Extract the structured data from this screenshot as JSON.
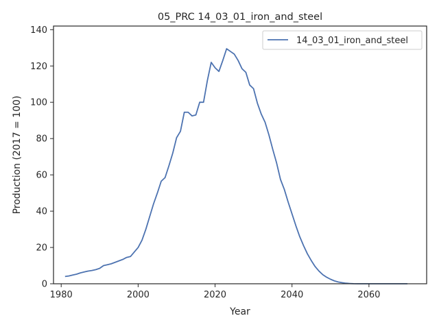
{
  "chart_data": {
    "type": "line",
    "title": "05_PRC 14_03_01_iron_and_steel",
    "xlabel": "Year",
    "ylabel": "Production (2017 = 100)",
    "xlim": [
      1978,
      2075
    ],
    "ylim": [
      0,
      142
    ],
    "xticks": [
      1980,
      2000,
      2020,
      2040,
      2060
    ],
    "yticks": [
      0,
      20,
      40,
      60,
      80,
      100,
      120,
      140
    ],
    "grid": false,
    "legend_position": "top-right",
    "colors": {
      "series": "#4c72b0",
      "axes": "#262626"
    },
    "series": [
      {
        "name": "14_03_01_iron_and_steel",
        "x": [
          1981,
          1982,
          1983,
          1984,
          1985,
          1986,
          1987,
          1988,
          1989,
          1990,
          1991,
          1992,
          1993,
          1994,
          1995,
          1996,
          1997,
          1998,
          1999,
          2000,
          2001,
          2002,
          2003,
          2004,
          2005,
          2006,
          2007,
          2008,
          2009,
          2010,
          2011,
          2012,
          2013,
          2014,
          2015,
          2016,
          2017,
          2018,
          2019,
          2020,
          2021,
          2022,
          2023,
          2024,
          2025,
          2026,
          2027,
          2028,
          2029,
          2030,
          2031,
          2032,
          2033,
          2034,
          2035,
          2036,
          2037,
          2038,
          2039,
          2040,
          2041,
          2042,
          2043,
          2044,
          2045,
          2046,
          2047,
          2048,
          2049,
          2050,
          2051,
          2052,
          2053,
          2054,
          2055,
          2056,
          2057,
          2058,
          2059,
          2060,
          2062,
          2064,
          2066,
          2068,
          2070
        ],
        "y": [
          4.0,
          4.3,
          4.8,
          5.3,
          6.0,
          6.5,
          7.0,
          7.3,
          7.8,
          8.5,
          10.0,
          10.5,
          11.0,
          11.8,
          12.6,
          13.4,
          14.5,
          15.0,
          17.5,
          20.0,
          24.0,
          30.0,
          37.0,
          44.0,
          50.0,
          56.5,
          58.5,
          65.0,
          72.0,
          80.5,
          84.0,
          94.5,
          94.5,
          92.5,
          93.0,
          100.0,
          100.0,
          112.0,
          122.0,
          119.0,
          117.0,
          123.0,
          129.5,
          128.0,
          126.5,
          123.0,
          118.5,
          116.5,
          109.5,
          107.5,
          99.5,
          93.5,
          89.0,
          82.0,
          74.0,
          66.5,
          57.5,
          52.0,
          45.0,
          38.5,
          32.0,
          26.0,
          21.0,
          16.5,
          12.8,
          9.5,
          7.0,
          5.0,
          3.6,
          2.5,
          1.6,
          1.0,
          0.6,
          0.3,
          0.15,
          0.05,
          0,
          0,
          0,
          0,
          0,
          0,
          0,
          0,
          0
        ]
      }
    ]
  }
}
